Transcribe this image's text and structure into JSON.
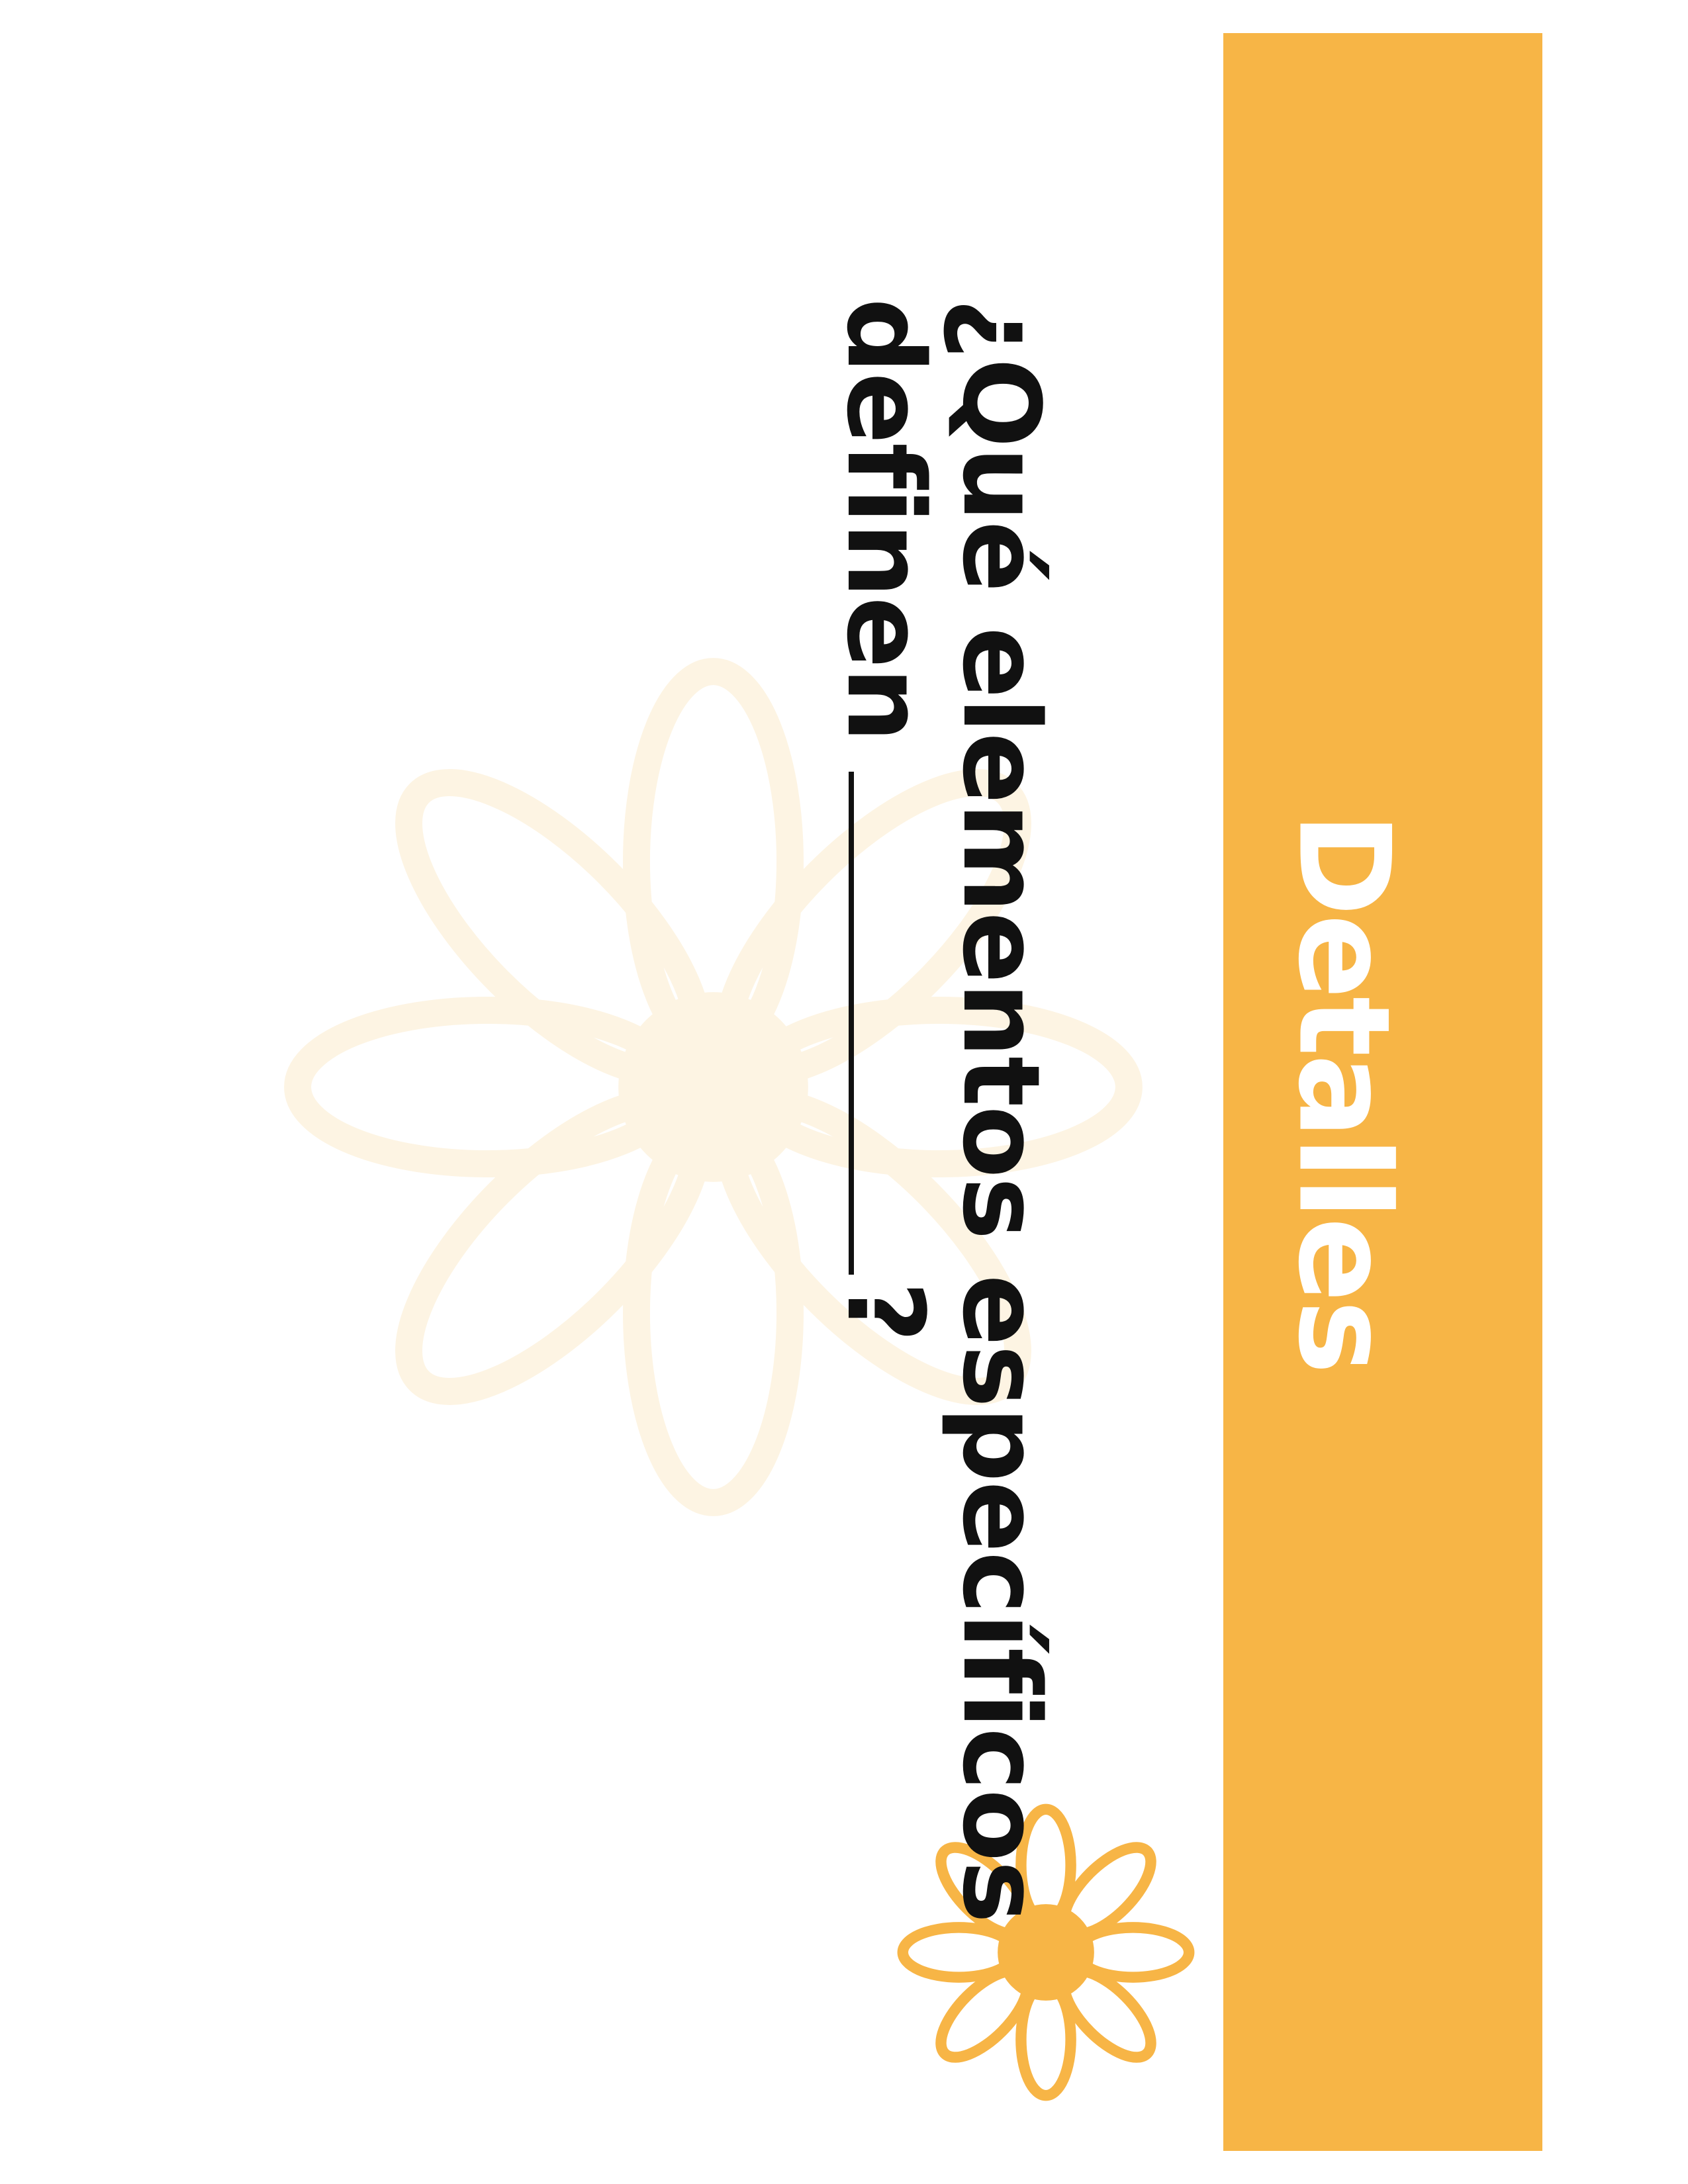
{
  "banner": {
    "title": "Detalles",
    "color": "#F7B546",
    "text_color": "#FFFFFF"
  },
  "question": {
    "line1": "¿Qué elementos específicos",
    "line2_prefix": "definen",
    "line2_suffix": "?"
  },
  "decorations": {
    "watermark_flower_color": "#FDF4E3",
    "small_flower_color": "#F7B546",
    "icons": [
      "watermark-flower-icon",
      "small-flower-icon"
    ]
  }
}
